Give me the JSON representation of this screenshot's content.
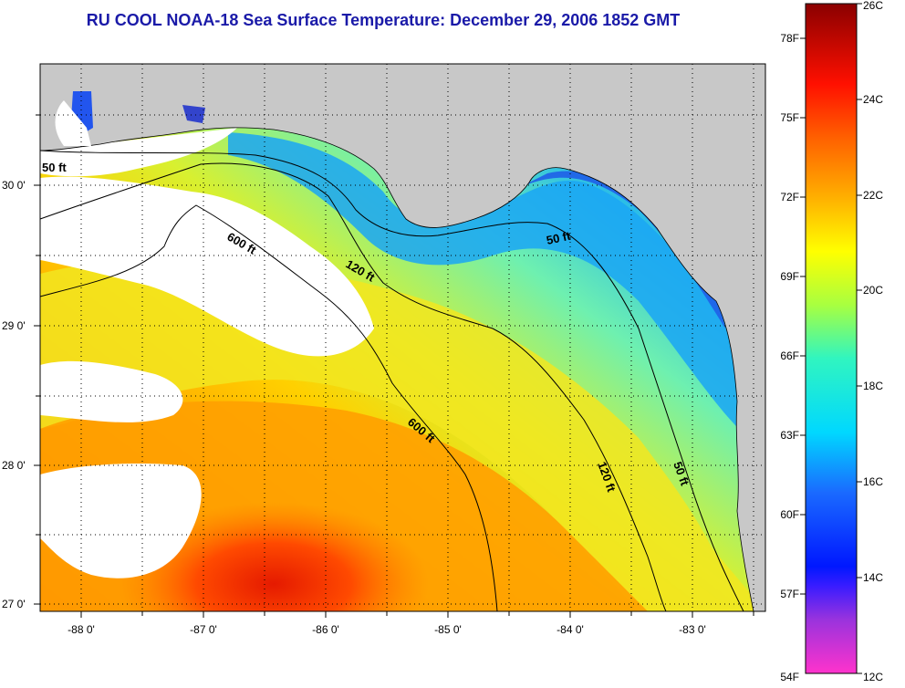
{
  "title": "RU COOL  NOAA-18  Sea Surface Temperature:  December 29, 2006 1852 GMT",
  "map": {
    "lon_ticks": [
      "-88 0'",
      "-87 0'",
      "-86 0'",
      "-85 0'",
      "-84 0'",
      "-83 0'"
    ],
    "lat_ticks": [
      "30 0'",
      "29 0'",
      "28 0'",
      "27 0'"
    ],
    "contour_labels": [
      "50 ft",
      "600 ft",
      "120 ft",
      "50 ft",
      "600 ft",
      "120 ft",
      "50 ft"
    ]
  },
  "colorbar": {
    "fahrenheit_labels": [
      "78F",
      "75F",
      "72F",
      "69F",
      "66F",
      "63F",
      "60F",
      "57F",
      "54F"
    ],
    "celsius_labels": [
      "26C",
      "24C",
      "22C",
      "20C",
      "18C",
      "16C",
      "14C",
      "12C"
    ],
    "range_celsius": [
      12,
      26
    ]
  }
}
